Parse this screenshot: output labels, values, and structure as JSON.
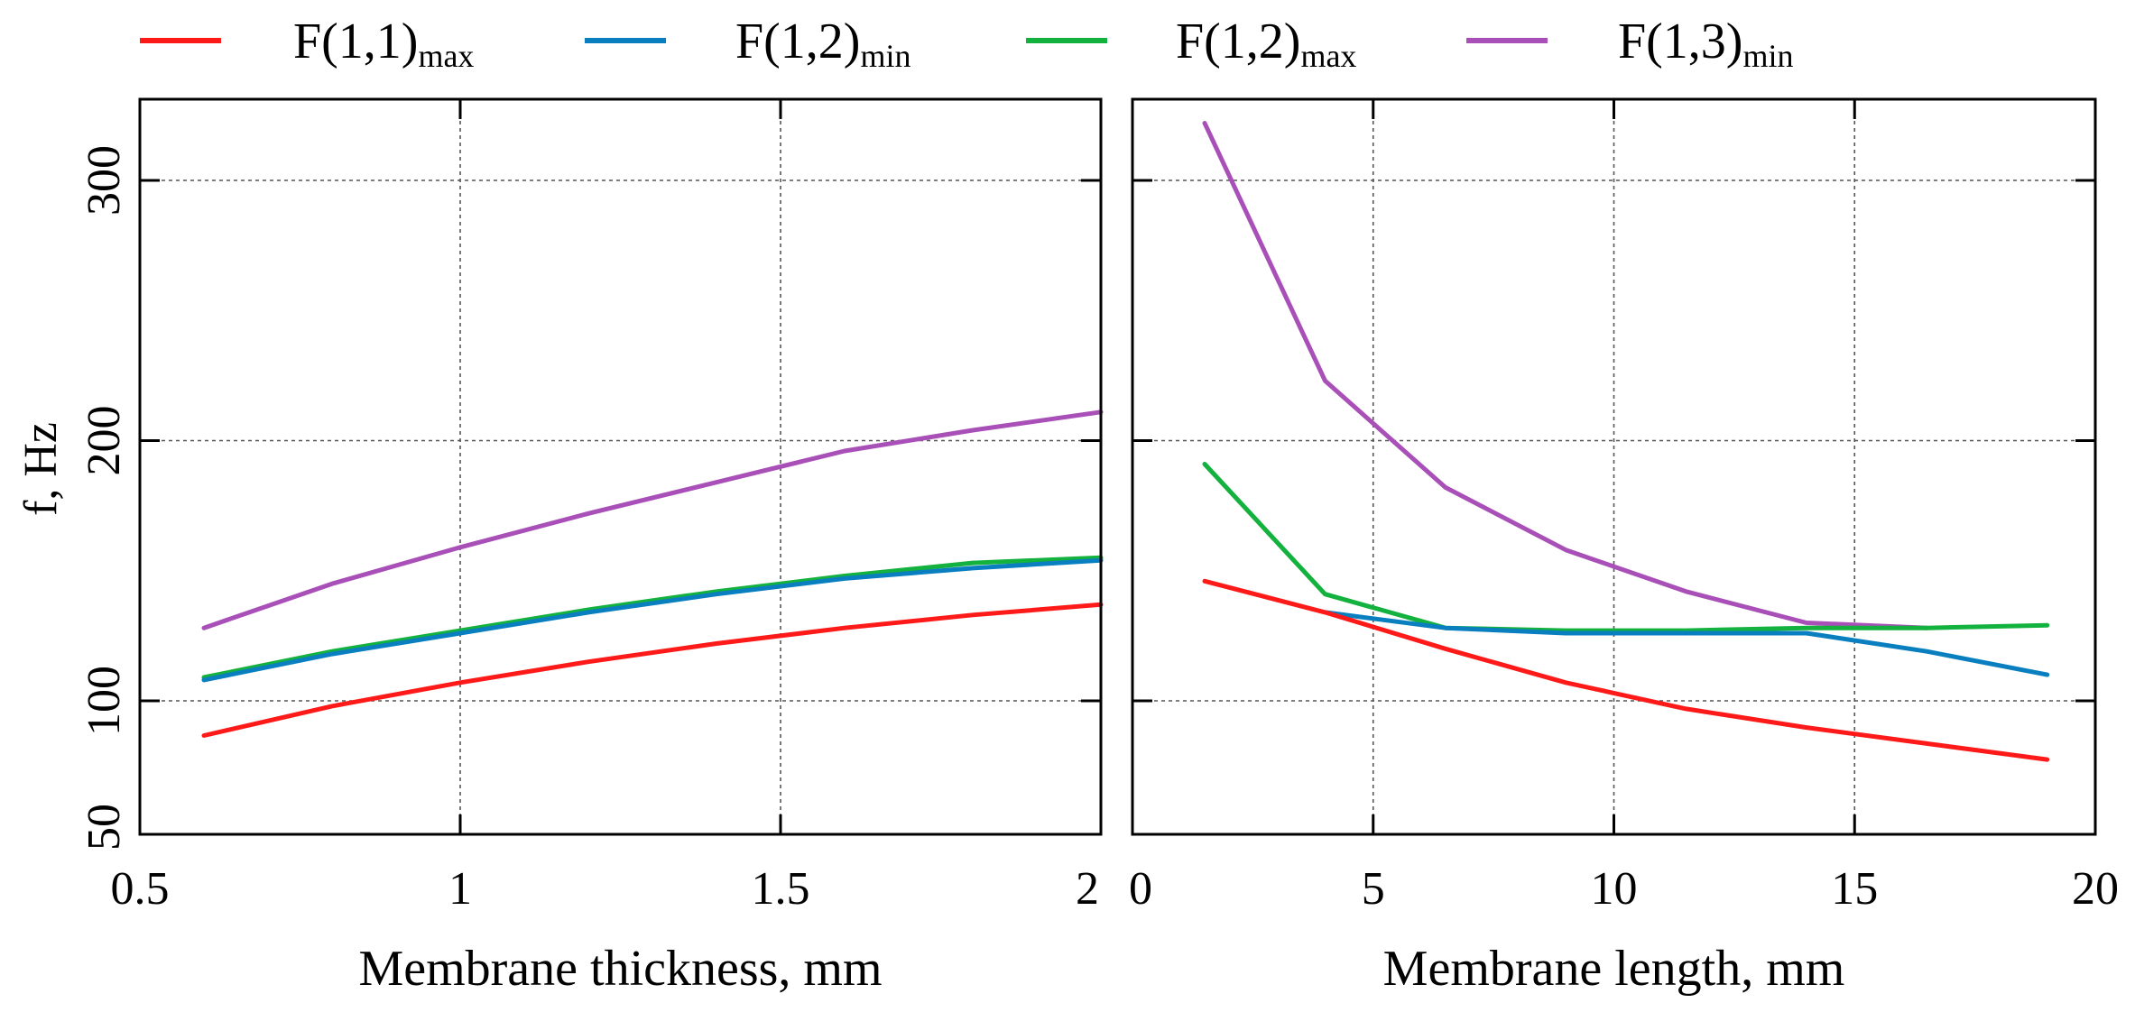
{
  "legend": [
    {
      "base": "F(1,1)",
      "sub": "max",
      "color": "#ff1a1a"
    },
    {
      "base": "F(1,2)",
      "sub": "min",
      "color": "#0a7fc0"
    },
    {
      "base": "F(1,2)",
      "sub": "max",
      "color": "#13b13d"
    },
    {
      "base": "F(1,3)",
      "sub": "min",
      "color": "#a94fb8"
    }
  ],
  "chart_data": [
    {
      "type": "line",
      "xlabel": "Membrane thickness, mm",
      "ylabel": "f, Hz",
      "xlim": [
        0.5,
        2
      ],
      "ylim": [
        50,
        330
      ],
      "yscale": "linear",
      "grid": true,
      "x_ticks": [
        0.5,
        1,
        1.5,
        2
      ],
      "x_tick_labels": [
        "0.5",
        "1",
        "1.5",
        "2"
      ],
      "y_ticks": [
        50,
        100,
        200,
        300
      ],
      "y_tick_labels": [
        "50",
        "100",
        "200",
        "300"
      ],
      "series": [
        {
          "name": "F(1,1)max",
          "color": "#ff1a1a",
          "x": [
            0.6,
            0.8,
            1.0,
            1.2,
            1.4,
            1.6,
            1.8,
            2.0
          ],
          "y": [
            87,
            98,
            107,
            115,
            122,
            128,
            133,
            137
          ]
        },
        {
          "name": "F(1,2)max",
          "color": "#13b13d",
          "x": [
            0.6,
            0.8,
            1.0,
            1.2,
            1.4,
            1.6,
            1.8,
            2.0
          ],
          "y": [
            109,
            119,
            127,
            135,
            142,
            148,
            153,
            155
          ]
        },
        {
          "name": "F(1,2)min",
          "color": "#0a7fc0",
          "x": [
            0.6,
            0.8,
            1.0,
            1.2,
            1.4,
            1.6,
            1.8,
            2.0
          ],
          "y": [
            108,
            118,
            126,
            134,
            141,
            147,
            151,
            154
          ]
        },
        {
          "name": "F(1,3)min",
          "color": "#a94fb8",
          "x": [
            0.6,
            0.8,
            1.0,
            1.2,
            1.4,
            1.6,
            1.8,
            2.0
          ],
          "y": [
            128,
            145,
            159,
            172,
            184,
            196,
            204,
            211
          ]
        }
      ]
    },
    {
      "type": "line",
      "xlabel": "Membrane length, mm",
      "ylabel": "",
      "xlim": [
        0,
        20
      ],
      "ylim": [
        50,
        330
      ],
      "yscale": "linear",
      "grid": true,
      "x_ticks": [
        0,
        5,
        10,
        15,
        20
      ],
      "x_tick_labels": [
        "0",
        "5",
        "10",
        "15",
        "20"
      ],
      "y_ticks": [
        100,
        200,
        300
      ],
      "series": [
        {
          "name": "F(1,1)max",
          "color": "#ff1a1a",
          "x": [
            1.5,
            4,
            6.5,
            9,
            11.5,
            14,
            16.5,
            19
          ],
          "y": [
            146,
            134,
            120,
            107,
            97,
            90,
            84,
            78
          ]
        },
        {
          "name": "F(1,2)max",
          "color": "#13b13d",
          "x": [
            1.5,
            4,
            6.5,
            9,
            11.5,
            14,
            16.5,
            19
          ],
          "y": [
            191,
            141,
            128,
            127,
            127,
            128,
            128,
            129
          ]
        },
        {
          "name": "F(1,2)min",
          "color": "#0a7fc0",
          "x": [
            4,
            6.5,
            9,
            11.5,
            14,
            16.5,
            19
          ],
          "y": [
            134,
            128,
            126,
            126,
            126,
            119,
            110
          ]
        },
        {
          "name": "F(1,3)min",
          "color": "#a94fb8",
          "x": [
            1.5,
            4,
            6.5,
            9,
            11.5,
            14,
            16.5
          ],
          "y": [
            322,
            223,
            182,
            158,
            142,
            130,
            128
          ]
        }
      ]
    }
  ]
}
